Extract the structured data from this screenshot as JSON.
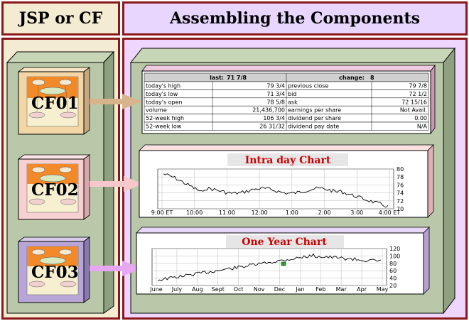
{
  "headers": {
    "left": "JSP or CF",
    "right": "Assembling the Components"
  },
  "components": [
    {
      "label": "CF01",
      "frame_color": "#f2d6a6",
      "arrow_color": "#d8b48c"
    },
    {
      "label": "CF02",
      "frame_color": "#f7d0d2",
      "arrow_color": "#f6c8cc"
    },
    {
      "label": "CF03",
      "frame_color": "#b8a6d8",
      "arrow_color": "#e6a6f2"
    }
  ],
  "quote_table": {
    "last_label": "last:",
    "last_value": "71 7/8",
    "change_label": "change:",
    "change_value": "8",
    "rows": [
      [
        "today's high",
        "79 3/4",
        "previous close",
        "79 7/8"
      ],
      [
        "today's low",
        "71 3/4",
        "bid",
        "72 1/2"
      ],
      [
        "today's open",
        "78 5/8",
        "ask",
        "72 15/16"
      ],
      [
        "volume",
        "21,436,700",
        "earnings per share",
        "Not Avail."
      ],
      [
        "52-week high",
        "106 3/4",
        "dividend per share",
        "0.00"
      ],
      [
        "52-week low",
        "26 31/32",
        "dividend pay date",
        "N/A"
      ]
    ]
  },
  "intraday_chart": {
    "title": "Intra day Chart",
    "x_ticks": [
      "9:00 ET",
      "10:00",
      "11:00",
      "12:00",
      "1:00",
      "2:00",
      "3:00",
      "4:00 ET"
    ],
    "y_ticks": [
      "80",
      "78",
      "76",
      "74",
      "72",
      "70"
    ]
  },
  "year_chart": {
    "title": "One Year Chart",
    "x_ticks": [
      "June",
      "July",
      "Aug",
      "Sept",
      "Oct",
      "Nov",
      "Dec",
      "Jan",
      "Feb",
      "Mar",
      "Apr",
      "May"
    ],
    "y_ticks": [
      "120",
      "100",
      "80",
      "60",
      "40",
      "20"
    ]
  },
  "colors": {
    "border": "#8b1818",
    "box_green": "#b8c8a8",
    "box_green_dark": "#8ea080",
    "right_bg": "#eed6ff",
    "left_bg": "#f4ecd2"
  }
}
